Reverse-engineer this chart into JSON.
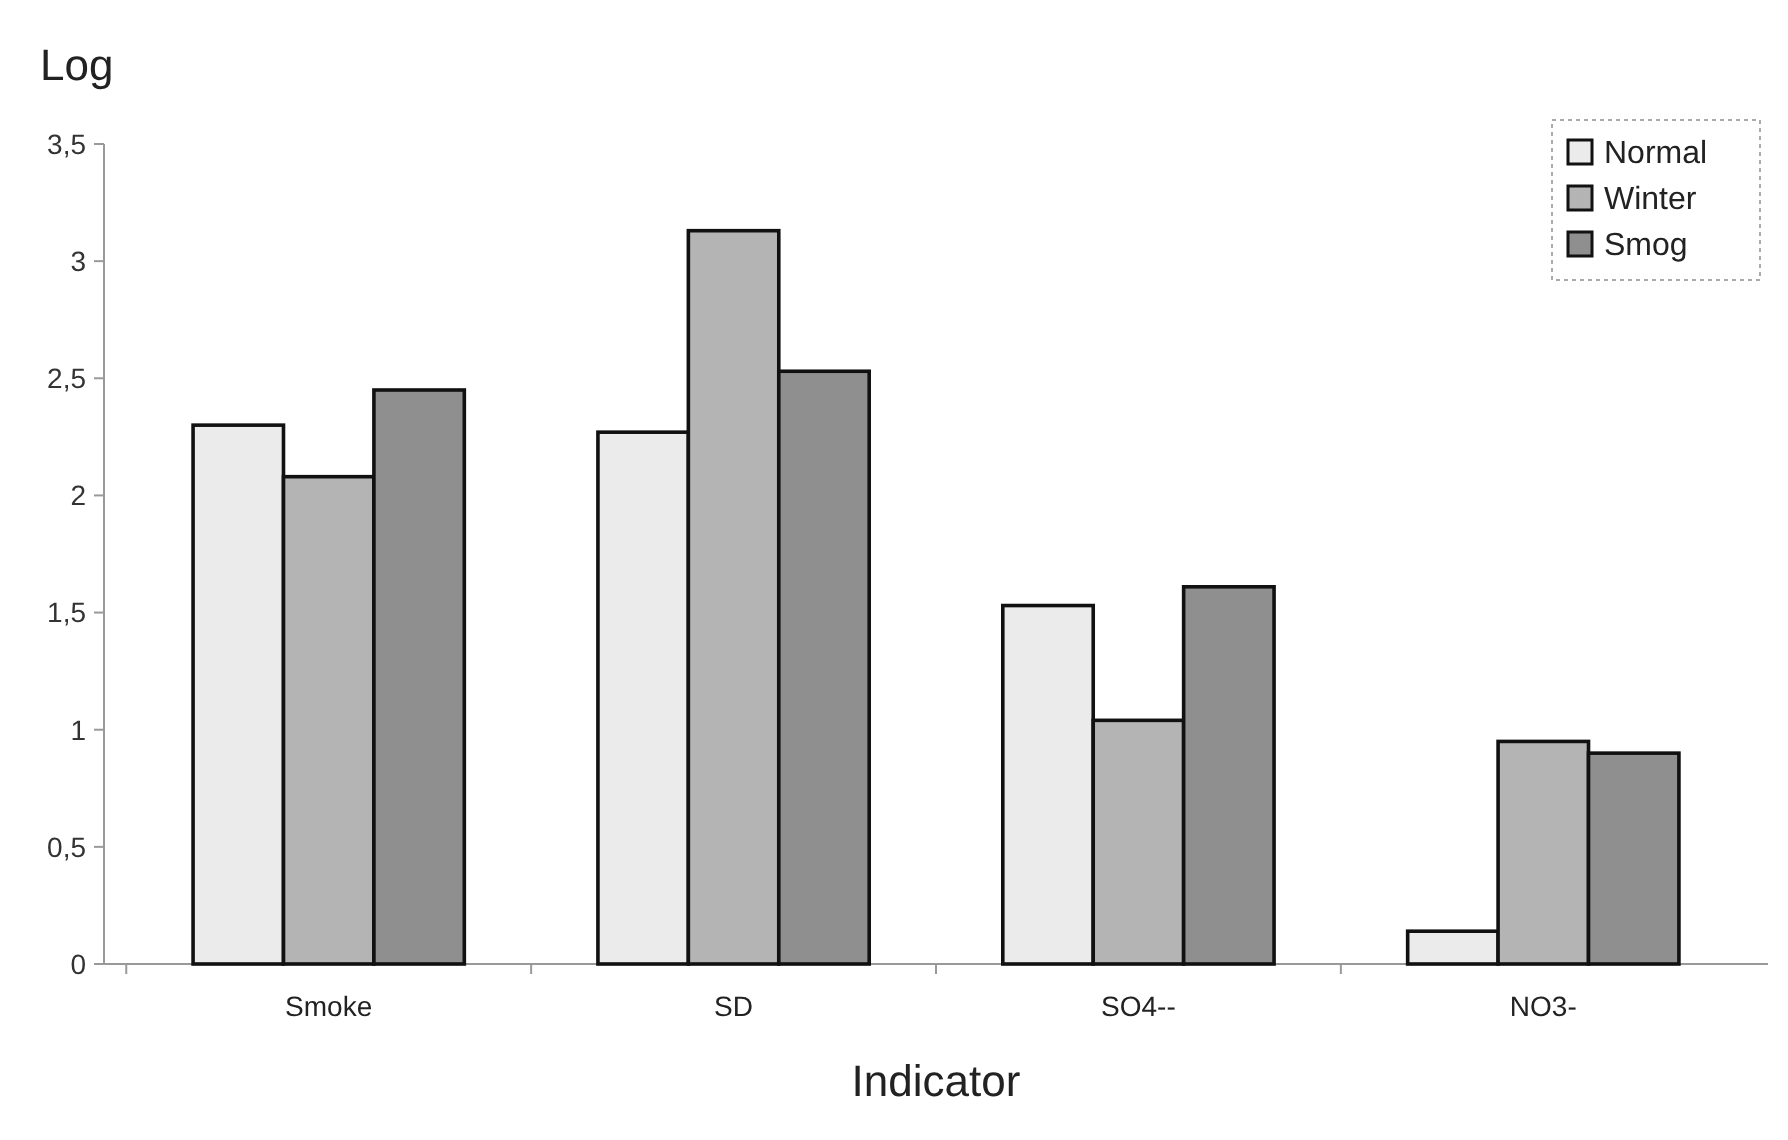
{
  "chart_data": {
    "type": "bar",
    "ylabel": "Log",
    "xlabel": "Indicator",
    "categories": [
      "Smoke",
      "SD",
      "SO4--",
      "NO3-"
    ],
    "series": [
      {
        "name": "Normal",
        "color": "#ebebeb",
        "values": [
          2.3,
          2.27,
          1.53,
          0.14
        ]
      },
      {
        "name": "Winter",
        "color": "#b4b4b4",
        "values": [
          2.08,
          3.13,
          1.04,
          0.95
        ]
      },
      {
        "name": "Smog",
        "color": "#8f8f8f",
        "values": [
          2.45,
          2.53,
          1.61,
          0.9
        ]
      }
    ],
    "ylim": [
      0,
      3.5
    ],
    "yticks": [
      0,
      {
        "value": 0.5,
        "label": "0,5"
      },
      1,
      {
        "value": 1.5,
        "label": "1,5"
      },
      2,
      {
        "value": 2.5,
        "label": "2,5"
      },
      3,
      {
        "value": 3.5,
        "label": "3,5"
      }
    ],
    "legend": "top right"
  }
}
